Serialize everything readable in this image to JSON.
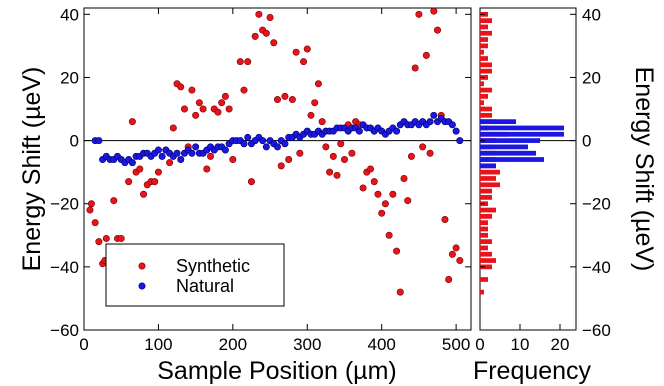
{
  "chart_data": [
    {
      "type": "scatter",
      "xlabel": "Sample Position (µm)",
      "ylabel": "Energy Shift (µeV)",
      "xlim": [
        0,
        520
      ],
      "ylim": [
        -60,
        42
      ],
      "xticks": [
        "0",
        "100",
        "200",
        "300",
        "400",
        "500"
      ],
      "yticks": [
        "−60",
        "−40",
        "−20",
        "0",
        "20",
        "40"
      ],
      "legend_position": "bottom-left",
      "reference_line_y": 0,
      "series": [
        {
          "name": "Synthetic",
          "color": "#e8141b",
          "points": [
            [
              8,
              -22
            ],
            [
              10,
              -20
            ],
            [
              15,
              -26
            ],
            [
              20,
              -32
            ],
            [
              25,
              -39
            ],
            [
              28,
              -38
            ],
            [
              30,
              -31
            ],
            [
              40,
              -19
            ],
            [
              45,
              -31
            ],
            [
              50,
              -31
            ],
            [
              60,
              -13
            ],
            [
              65,
              6
            ],
            [
              70,
              -10
            ],
            [
              75,
              -9
            ],
            [
              80,
              -17
            ],
            [
              85,
              -14
            ],
            [
              90,
              -13
            ],
            [
              95,
              -13
            ],
            [
              100,
              -10
            ],
            [
              110,
              -3
            ],
            [
              115,
              -7
            ],
            [
              120,
              4
            ],
            [
              125,
              18
            ],
            [
              130,
              17
            ],
            [
              135,
              10
            ],
            [
              140,
              -2
            ],
            [
              145,
              16
            ],
            [
              150,
              8
            ],
            [
              155,
              12
            ],
            [
              160,
              10
            ],
            [
              165,
              -9
            ],
            [
              170,
              -5
            ],
            [
              175,
              10
            ],
            [
              180,
              9
            ],
            [
              185,
              12
            ],
            [
              190,
              14
            ],
            [
              195,
              10
            ],
            [
              200,
              -6
            ],
            [
              210,
              25
            ],
            [
              215,
              16
            ],
            [
              220,
              25
            ],
            [
              225,
              -13
            ],
            [
              230,
              33
            ],
            [
              235,
              40
            ],
            [
              240,
              35
            ],
            [
              245,
              34
            ],
            [
              250,
              39
            ],
            [
              255,
              31
            ],
            [
              260,
              13
            ],
            [
              265,
              -8
            ],
            [
              270,
              14
            ],
            [
              275,
              -6
            ],
            [
              280,
              13
            ],
            [
              285,
              28
            ],
            [
              290,
              -4
            ],
            [
              295,
              25
            ],
            [
              300,
              29
            ],
            [
              305,
              8
            ],
            [
              310,
              12
            ],
            [
              315,
              18
            ],
            [
              320,
              6
            ],
            [
              325,
              -2
            ],
            [
              330,
              -10
            ],
            [
              335,
              -5
            ],
            [
              340,
              -11
            ],
            [
              345,
              -1
            ],
            [
              350,
              -6
            ],
            [
              355,
              5
            ],
            [
              360,
              -4
            ],
            [
              365,
              6
            ],
            [
              370,
              5
            ],
            [
              375,
              -15
            ],
            [
              380,
              -10
            ],
            [
              385,
              -9
            ],
            [
              390,
              -13
            ],
            [
              395,
              -17
            ],
            [
              400,
              -23
            ],
            [
              405,
              -20
            ],
            [
              410,
              -30
            ],
            [
              415,
              -17
            ],
            [
              420,
              -35
            ],
            [
              425,
              -48
            ],
            [
              430,
              -12
            ],
            [
              435,
              -19
            ],
            [
              440,
              -5
            ],
            [
              445,
              23
            ],
            [
              450,
              40
            ],
            [
              455,
              -2
            ],
            [
              460,
              27
            ],
            [
              465,
              -4
            ],
            [
              470,
              41
            ],
            [
              475,
              35
            ],
            [
              480,
              8
            ],
            [
              485,
              -25
            ],
            [
              490,
              -44
            ],
            [
              495,
              -36
            ],
            [
              500,
              -34
            ],
            [
              505,
              -38
            ]
          ]
        },
        {
          "name": "Natural",
          "color": "#1b17e0",
          "points": [
            [
              15,
              0
            ],
            [
              20,
              0
            ],
            [
              25,
              -6
            ],
            [
              30,
              -5
            ],
            [
              35,
              -6
            ],
            [
              40,
              -6
            ],
            [
              45,
              -5
            ],
            [
              50,
              -6
            ],
            [
              55,
              -7
            ],
            [
              60,
              -6
            ],
            [
              65,
              -7
            ],
            [
              70,
              -5
            ],
            [
              75,
              -5
            ],
            [
              80,
              -4
            ],
            [
              85,
              -4
            ],
            [
              90,
              -5
            ],
            [
              95,
              -4
            ],
            [
              100,
              -3
            ],
            [
              105,
              -5
            ],
            [
              110,
              -3
            ],
            [
              115,
              -4
            ],
            [
              120,
              -5
            ],
            [
              125,
              -4
            ],
            [
              130,
              -6
            ],
            [
              135,
              -4
            ],
            [
              140,
              -3
            ],
            [
              145,
              -4
            ],
            [
              150,
              -2
            ],
            [
              155,
              -4
            ],
            [
              160,
              -4
            ],
            [
              165,
              -3
            ],
            [
              170,
              -2
            ],
            [
              175,
              -3
            ],
            [
              180,
              -2
            ],
            [
              185,
              -2
            ],
            [
              190,
              -3
            ],
            [
              195,
              -1
            ],
            [
              200,
              0
            ],
            [
              205,
              0
            ],
            [
              210,
              0
            ],
            [
              215,
              -1
            ],
            [
              220,
              1
            ],
            [
              225,
              -1
            ],
            [
              230,
              0
            ],
            [
              235,
              1
            ],
            [
              240,
              0
            ],
            [
              245,
              -2
            ],
            [
              250,
              0
            ],
            [
              255,
              -1
            ],
            [
              260,
              -2
            ],
            [
              265,
              0
            ],
            [
              270,
              -1
            ],
            [
              275,
              1
            ],
            [
              280,
              1
            ],
            [
              285,
              2
            ],
            [
              290,
              1
            ],
            [
              295,
              2
            ],
            [
              300,
              3
            ],
            [
              305,
              2
            ],
            [
              310,
              2
            ],
            [
              315,
              3
            ],
            [
              320,
              2
            ],
            [
              325,
              3
            ],
            [
              330,
              3
            ],
            [
              335,
              3
            ],
            [
              340,
              4
            ],
            [
              345,
              4
            ],
            [
              350,
              4
            ],
            [
              355,
              3
            ],
            [
              360,
              4
            ],
            [
              365,
              4
            ],
            [
              370,
              3
            ],
            [
              375,
              5
            ],
            [
              380,
              4
            ],
            [
              385,
              4
            ],
            [
              390,
              3
            ],
            [
              395,
              4
            ],
            [
              400,
              3
            ],
            [
              405,
              2
            ],
            [
              410,
              3
            ],
            [
              415,
              4
            ],
            [
              420,
              3
            ],
            [
              425,
              5
            ],
            [
              430,
              6
            ],
            [
              435,
              5
            ],
            [
              440,
              5
            ],
            [
              445,
              6
            ],
            [
              450,
              5
            ],
            [
              455,
              6
            ],
            [
              460,
              5
            ],
            [
              465,
              6
            ],
            [
              470,
              8
            ],
            [
              475,
              6
            ],
            [
              480,
              7
            ],
            [
              485,
              6
            ],
            [
              490,
              6
            ],
            [
              495,
              5
            ],
            [
              500,
              3
            ],
            [
              505,
              0
            ]
          ]
        }
      ]
    },
    {
      "type": "bar",
      "orientation": "horizontal",
      "xlabel": "Frequency",
      "ylabel": "Energy Shift (µeV)",
      "xlim": [
        0,
        24
      ],
      "ylim": [
        -60,
        42
      ],
      "xticks": [
        "0",
        "10",
        "20"
      ],
      "yticks": [
        "−60",
        "−40",
        "−20",
        "0",
        "20",
        "40"
      ],
      "bin_width": 2,
      "series": [
        {
          "name": "Synthetic",
          "color": "#e8141b",
          "bins": [
            [
              40,
              2
            ],
            [
              38,
              3
            ],
            [
              36,
              2
            ],
            [
              34,
              3
            ],
            [
              32,
              2
            ],
            [
              30,
              2
            ],
            [
              28,
              1
            ],
            [
              26,
              2
            ],
            [
              24,
              3
            ],
            [
              22,
              3
            ],
            [
              20,
              2
            ],
            [
              18,
              1
            ],
            [
              16,
              3
            ],
            [
              14,
              2
            ],
            [
              12,
              1
            ],
            [
              10,
              3
            ],
            [
              8,
              3
            ],
            [
              6,
              4
            ],
            [
              4,
              2
            ],
            [
              2,
              7
            ],
            [
              0,
              4
            ],
            [
              -2,
              3
            ],
            [
              -4,
              4
            ],
            [
              -6,
              4
            ],
            [
              -8,
              4
            ],
            [
              -10,
              5
            ],
            [
              -12,
              4
            ],
            [
              -14,
              5
            ],
            [
              -16,
              3
            ],
            [
              -18,
              3
            ],
            [
              -20,
              2
            ],
            [
              -22,
              4
            ],
            [
              -24,
              3
            ],
            [
              -26,
              2
            ],
            [
              -28,
              2
            ],
            [
              -30,
              2
            ],
            [
              -32,
              3
            ],
            [
              -34,
              2
            ],
            [
              -36,
              3
            ],
            [
              -38,
              4
            ],
            [
              -40,
              3
            ],
            [
              -44,
              2
            ],
            [
              -48,
              1
            ]
          ]
        },
        {
          "name": "Natural",
          "color": "#1b17e0",
          "bins": [
            [
              6,
              9
            ],
            [
              4,
              21
            ],
            [
              2,
              21
            ],
            [
              0,
              15
            ],
            [
              -2,
              12
            ],
            [
              -4,
              14
            ],
            [
              -6,
              16
            ],
            [
              -8,
              4
            ]
          ]
        }
      ]
    }
  ]
}
